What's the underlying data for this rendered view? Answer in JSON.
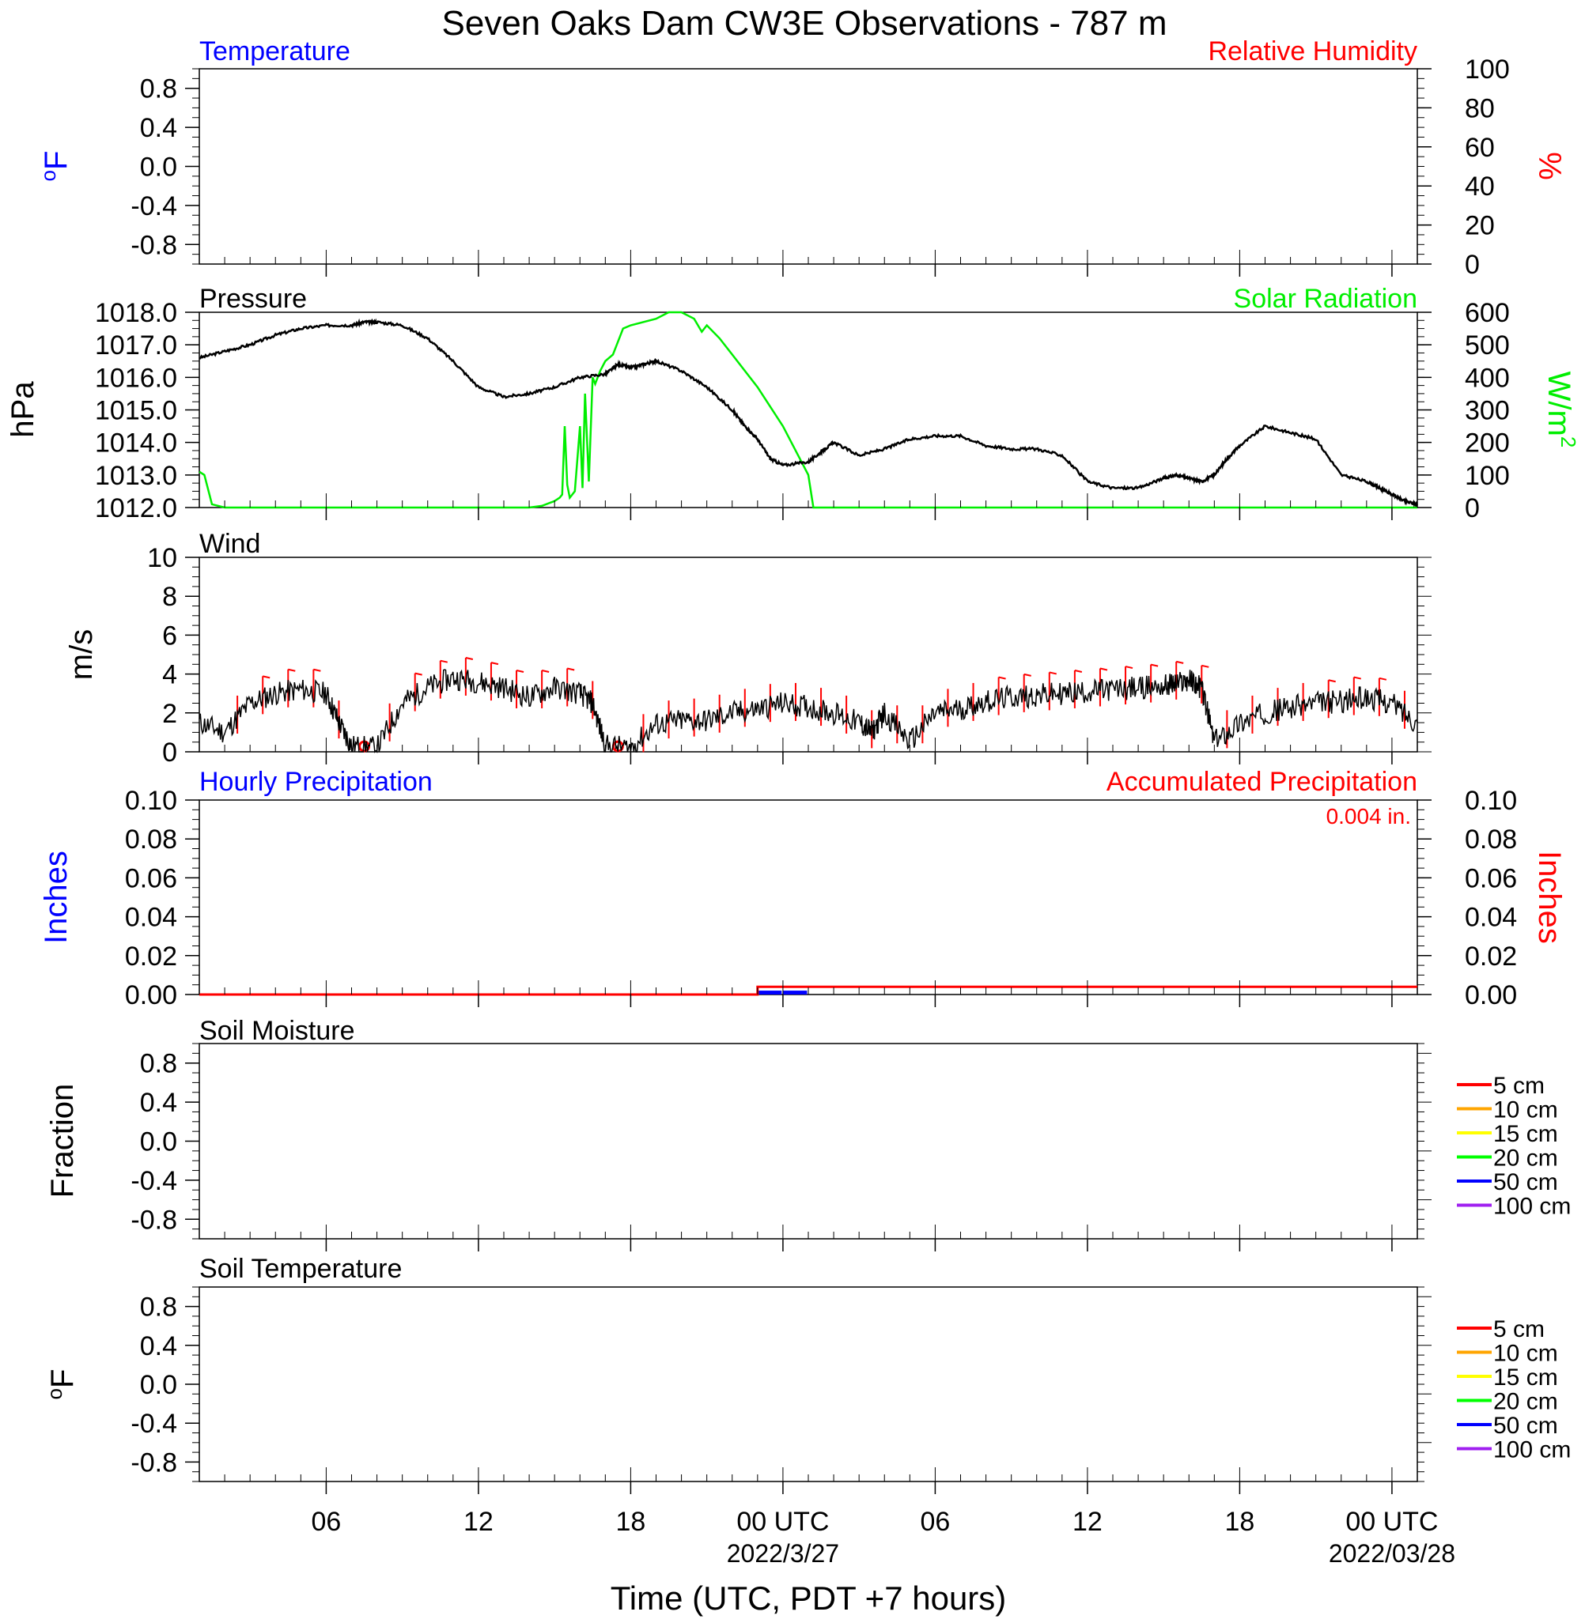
{
  "title": "Seven Oaks Dam CW3E Observations - 787 m",
  "xaxis": {
    "label": "Time (UTC, PDT +7 hours)",
    "range_hours": [
      0,
      48
    ],
    "ticks": [
      {
        "hour": 5,
        "label": "06",
        "date": ""
      },
      {
        "hour": 11,
        "label": "12",
        "date": ""
      },
      {
        "hour": 17,
        "label": "18",
        "date": ""
      },
      {
        "hour": 23,
        "label": "00 UTC",
        "date": "2022/3/27"
      },
      {
        "hour": 29,
        "label": "06",
        "date": ""
      },
      {
        "hour": 35,
        "label": "12",
        "date": ""
      },
      {
        "hour": 41,
        "label": "18",
        "date": ""
      },
      {
        "hour": 47,
        "label": "00 UTC",
        "date": "2022/03/28"
      }
    ]
  },
  "colors": {
    "temperature": "#0000ff",
    "humidity": "#ff0000",
    "pressure": "#000000",
    "solar": "#00ff00",
    "wind": "#000000",
    "barb": "#ff0000",
    "hourly_precip": "#0000ff",
    "accum_precip": "#ff0000"
  },
  "panels": {
    "temperature": {
      "left_title": "Temperature",
      "right_title": "Relative Humidity",
      "left_unit": "oF",
      "right_unit": "%",
      "left_ticks": [
        "0.8",
        "0.4",
        "0.0",
        "-0.4",
        "-0.8"
      ],
      "right_ticks": [
        "100",
        "80",
        "60",
        "40",
        "20",
        "0"
      ]
    },
    "pressure": {
      "left_title": "Pressure",
      "right_title": "Solar Radiation",
      "left_unit": "hPa",
      "right_unit": "W/m2",
      "left_ticks": [
        "1018.0",
        "1017.0",
        "1016.0",
        "1015.0",
        "1014.0",
        "1013.0",
        "1012.0"
      ],
      "right_ticks": [
        "600",
        "500",
        "400",
        "300",
        "200",
        "100",
        "0"
      ]
    },
    "wind": {
      "left_title": "Wind",
      "left_unit": "m/s",
      "left_ticks": [
        "10",
        "8",
        "6",
        "4",
        "2",
        "0"
      ]
    },
    "precip": {
      "left_title": "Hourly Precipitation",
      "right_title": "Accumulated Precipitation",
      "left_unit": "Inches",
      "right_unit": "Inches",
      "total": "0.004 in.",
      "left_ticks": [
        "0.10",
        "0.08",
        "0.06",
        "0.04",
        "0.02",
        "0.00"
      ],
      "right_ticks": [
        "0.10",
        "0.08",
        "0.06",
        "0.04",
        "0.02",
        "0.00"
      ]
    },
    "soil_moisture": {
      "left_title": "Soil Moisture",
      "left_unit": "Fraction",
      "left_ticks": [
        "0.8",
        "0.4",
        "0.0",
        "-0.4",
        "-0.8"
      ]
    },
    "soil_temperature": {
      "left_title": "Soil Temperature",
      "left_unit": "oF",
      "left_ticks": [
        "0.8",
        "0.4",
        "0.0",
        "-0.4",
        "-0.8"
      ]
    }
  },
  "legend": [
    {
      "label": "5 cm",
      "color": "#ff0000"
    },
    {
      "label": "10 cm",
      "color": "#ffa500"
    },
    {
      "label": "15 cm",
      "color": "#ffff00"
    },
    {
      "label": "20 cm",
      "color": "#00ff00"
    },
    {
      "label": "50 cm",
      "color": "#0000ff"
    },
    {
      "label": "100 cm",
      "color": "#a020f0"
    }
  ],
  "chart_data": [
    {
      "type": "line",
      "panel": "pressure",
      "name": "Pressure",
      "x_unit": "hours since start",
      "ylim": [
        1012.0,
        1018.0
      ],
      "x": [
        0,
        1,
        2,
        3,
        4,
        5,
        6,
        6.5,
        7,
        8,
        9,
        10,
        11,
        12,
        13,
        14,
        15,
        16,
        16.5,
        17,
        17.5,
        18,
        19,
        20,
        21,
        21.5,
        22,
        22.5,
        23,
        24,
        24.5,
        25,
        26,
        27,
        28,
        29,
        30,
        31,
        32,
        33,
        34,
        35,
        36,
        37,
        38,
        38.5,
        39,
        39.5,
        40,
        40.5,
        41,
        42,
        43,
        44,
        45,
        46,
        46.5,
        47,
        47.5,
        48
      ],
      "y": [
        1016.6,
        1016.8,
        1017.0,
        1017.3,
        1017.5,
        1017.6,
        1017.6,
        1017.7,
        1017.7,
        1017.6,
        1017.2,
        1016.5,
        1015.7,
        1015.4,
        1015.5,
        1015.7,
        1016.0,
        1016.1,
        1016.4,
        1016.3,
        1016.4,
        1016.5,
        1016.2,
        1015.7,
        1015.0,
        1014.5,
        1014.1,
        1013.5,
        1013.3,
        1013.4,
        1013.7,
        1014.0,
        1013.6,
        1013.8,
        1014.1,
        1014.2,
        1014.2,
        1013.9,
        1013.8,
        1013.8,
        1013.6,
        1012.8,
        1012.6,
        1012.6,
        1012.9,
        1013.0,
        1012.9,
        1012.8,
        1013.0,
        1013.5,
        1013.9,
        1014.5,
        1014.3,
        1014.1,
        1013.0,
        1012.8,
        1012.6,
        1012.4,
        1012.2,
        1012.1
      ]
    },
    {
      "type": "line",
      "panel": "pressure",
      "name": "Solar Radiation",
      "x_unit": "hours since start",
      "ylim": [
        0,
        600
      ],
      "x": [
        0,
        0.2,
        0.5,
        1,
        13,
        13.5,
        14,
        14.2,
        14.3,
        14.4,
        14.5,
        14.6,
        14.8,
        15.0,
        15.1,
        15.2,
        15.35,
        15.5,
        15.6,
        15.8,
        16.0,
        16.3,
        16.6,
        16.7,
        17.0,
        18,
        18.5,
        19,
        19.5,
        19.8,
        20,
        20.5,
        21,
        22,
        23,
        24,
        24.2,
        48,
        47.8
      ],
      "y": [
        110,
        100,
        10,
        0,
        0,
        5,
        20,
        30,
        40,
        250,
        70,
        30,
        50,
        250,
        60,
        350,
        80,
        400,
        380,
        420,
        450,
        470,
        530,
        550,
        560,
        580,
        600,
        600,
        580,
        540,
        560,
        520,
        470,
        370,
        250,
        100,
        0,
        0,
        0
      ]
    },
    {
      "type": "line",
      "panel": "wind",
      "name": "Wind",
      "x_unit": "hours since start",
      "ylim": [
        0,
        10
      ],
      "x": [
        0,
        1,
        2,
        3,
        4,
        5,
        5.5,
        6,
        7,
        8,
        9,
        10,
        11,
        12,
        13,
        14,
        15,
        15.5,
        16,
        17,
        18,
        19,
        20,
        21,
        22,
        23,
        24,
        25,
        26,
        26.5,
        27,
        28,
        29,
        30,
        31,
        32,
        33,
        34,
        35,
        36,
        37,
        38,
        38.5,
        39,
        39.5,
        40,
        41,
        42,
        43,
        44,
        45,
        46,
        47,
        48
      ],
      "y": [
        1.5,
        1.0,
        2.5,
        3.0,
        3.2,
        3.0,
        1.5,
        0.3,
        0.2,
        2.5,
        3.3,
        3.8,
        3.6,
        3.3,
        2.8,
        3.3,
        3.0,
        2.5,
        0.3,
        0.2,
        1.4,
        1.6,
        1.6,
        2.0,
        2.2,
        2.5,
        2.3,
        2.0,
        1.5,
        1.0,
        2.0,
        0.5,
        2.0,
        2.2,
        2.6,
        2.8,
        2.9,
        3.0,
        3.1,
        3.2,
        3.3,
        3.4,
        3.5,
        3.7,
        3.3,
        0.5,
        1.5,
        2.0,
        2.3,
        2.5,
        2.6,
        2.8,
        2.5,
        1.5
      ]
    },
    {
      "type": "bar",
      "panel": "precip",
      "name": "Hourly Precipitation",
      "x_unit": "hours since start",
      "ylim": [
        0,
        0.1
      ],
      "x": [
        22,
        23
      ],
      "y": [
        0.002,
        0.002
      ]
    },
    {
      "type": "line",
      "panel": "precip",
      "name": "Accumulated Precipitation",
      "x_unit": "hours since start",
      "ylim": [
        0,
        0.1
      ],
      "x": [
        0,
        22,
        22.5,
        48
      ],
      "y": [
        0,
        0,
        0.004,
        0.004
      ]
    }
  ]
}
